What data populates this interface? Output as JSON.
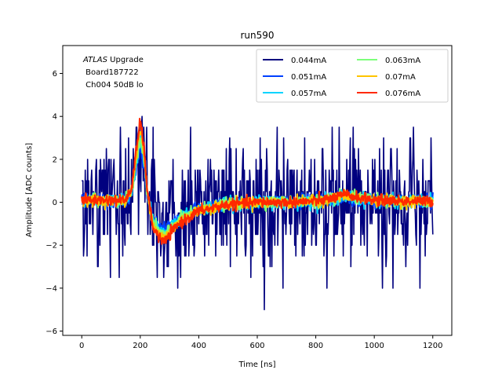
{
  "chart_data": {
    "type": "line",
    "title": "run590",
    "xlabel": "Time [ns]",
    "ylabel": "Amplitude [ADC counts]",
    "xlim": [
      -65,
      1265
    ],
    "ylim": [
      -6.2,
      7.3
    ],
    "xticks": [
      0,
      200,
      400,
      600,
      800,
      1000,
      1200
    ],
    "yticks": [
      -6,
      -4,
      -2,
      0,
      2,
      4,
      6
    ],
    "grid": false,
    "legend_position": "top-right",
    "legend_columns": 2,
    "annotation": {
      "italic": "ATLAS",
      "line1_rest": " Upgrade",
      "line2": " Board187722",
      "line3": " Ch004 50dB lo"
    },
    "series": [
      {
        "name": "0.044mA",
        "color": "#00007f",
        "noise": 1.55,
        "peak": 2.8
      },
      {
        "name": "0.051mA",
        "color": "#0040ff",
        "noise": 0.16,
        "peak": 2.6
      },
      {
        "name": "0.057mA",
        "color": "#00d4ff",
        "noise": 0.15,
        "peak": 2.9
      },
      {
        "name": "0.063mA",
        "color": "#7dff7a",
        "noise": 0.14,
        "peak": 3.1
      },
      {
        "name": "0.07mA",
        "color": "#ffc400",
        "noise": 0.13,
        "peak": 3.4
      },
      {
        "name": "0.076mA",
        "color": "#ff2900",
        "noise": 0.12,
        "peak": 3.8
      }
    ],
    "pulse_shape": {
      "t": [
        0,
        150,
        170,
        185,
        200,
        210,
        225,
        245,
        270,
        285,
        300,
        330,
        400,
        500,
        600,
        700,
        800,
        850,
        900,
        950,
        1000,
        1100,
        1200
      ],
      "v": [
        0.1,
        0.1,
        0.6,
        2.2,
        3.7,
        2.8,
        0.4,
        -1.2,
        -1.7,
        -1.8,
        -1.5,
        -1.0,
        -0.4,
        -0.1,
        0.0,
        0.0,
        0.05,
        0.15,
        0.35,
        0.2,
        0.1,
        0.05,
        0.05
      ]
    }
  }
}
